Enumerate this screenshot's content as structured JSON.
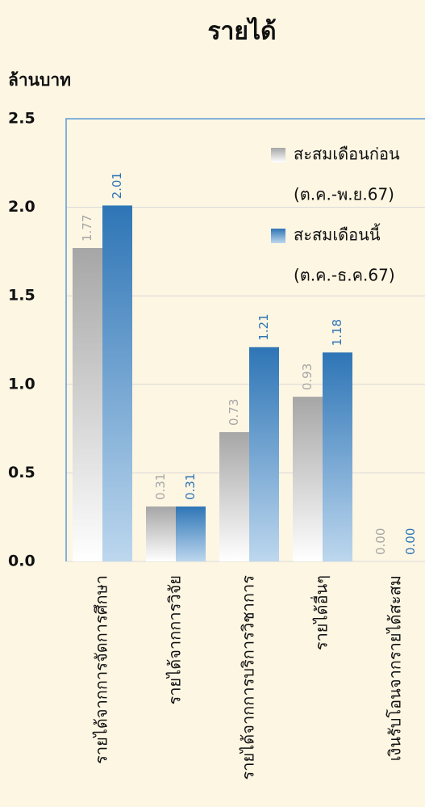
{
  "chart_data": {
    "type": "bar",
    "title": "รายได้",
    "y_label": "ล้านบาท",
    "categories": [
      "รายได้จากการจัดการศึกษา",
      "รายได้จากการวิจัย",
      "รายได้จากการบริการวิชาการ",
      "รายได้อื่นๆ",
      "เงินรับโอนจากรายได้สะสม"
    ],
    "series": [
      {
        "name": "สะสมเดือนก่อน",
        "period": "(ต.ค.-พ.ย.67)",
        "color": "#a6a6a6",
        "values": [
          1.77,
          0.31,
          0.73,
          0.93,
          0
        ],
        "value_labels": [
          "1.77",
          "0.31",
          "0.73",
          "0.93",
          "0.00"
        ]
      },
      {
        "name": "สะสมเดือนนี้",
        "period": "(ต.ค.-ธ.ค.67)",
        "color": "#2e75b6",
        "values": [
          2.01,
          0.31,
          1.21,
          1.18,
          0
        ],
        "value_labels": [
          "2.01",
          "0.31",
          "1.21",
          "1.18",
          "0.00"
        ]
      }
    ],
    "ylim": [
      0,
      2.5
    ],
    "yticks": [
      {
        "value": 0,
        "label": "0.0"
      },
      0.5,
      {
        "value": 1,
        "label": "1.0"
      },
      1.5,
      {
        "value": 2,
        "label": "2.0"
      },
      2.5
    ],
    "grid": true,
    "legend": "top-right"
  }
}
